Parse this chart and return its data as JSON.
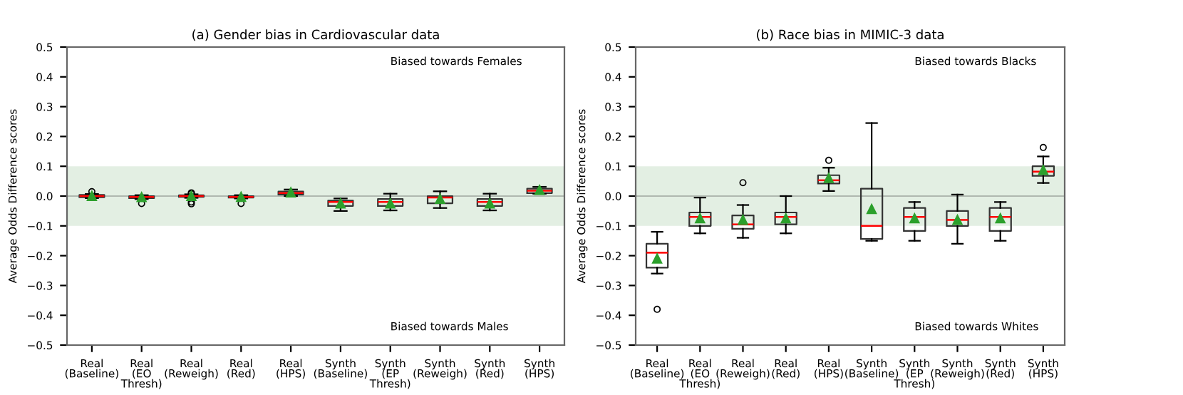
{
  "chart_data": [
    {
      "type": "box",
      "title": "(a) Gender bias in Cardiovascular data",
      "ylabel": "Average Odds Difference scores",
      "categories": [
        "Real\n(Baseline)",
        "Real\n(EO\nThresh)",
        "Real\n(Reweigh)",
        "Real\n(Red)",
        "Real\n(HPS)",
        "Synth\n(Baseline)",
        "Synth\n(EP\nThresh)",
        "Synth\n(Reweigh)",
        "Synth\n(Red)",
        "Synth\n(HPS)"
      ],
      "boxes": [
        {
          "low": -0.007,
          "q1": -0.004,
          "median": 0.0,
          "q3": 0.004,
          "high": 0.007,
          "mean": 0.0,
          "outliers": [
            0.015
          ]
        },
        {
          "low": -0.01,
          "q1": -0.007,
          "median": -0.003,
          "q3": 0.0,
          "high": 0.003,
          "mean": -0.004,
          "outliers": [
            -0.025
          ]
        },
        {
          "low": -0.006,
          "q1": -0.003,
          "median": 0.0,
          "q3": 0.003,
          "high": 0.006,
          "mean": 0.0,
          "outliers": [
            0.011,
            -0.026,
            0.008,
            -0.02
          ]
        },
        {
          "low": -0.008,
          "q1": -0.005,
          "median": -0.003,
          "q3": 0.0,
          "high": 0.003,
          "mean": -0.003,
          "outliers": [
            -0.025
          ]
        },
        {
          "low": 0.0,
          "q1": 0.005,
          "median": 0.01,
          "q3": 0.015,
          "high": 0.022,
          "mean": 0.012
        },
        {
          "low": -0.05,
          "q1": -0.033,
          "median": -0.02,
          "q3": -0.015,
          "high": -0.008,
          "mean": -0.025
        },
        {
          "low": -0.048,
          "q1": -0.033,
          "median": -0.02,
          "q3": -0.01,
          "high": 0.008,
          "mean": -0.025
        },
        {
          "low": -0.04,
          "q1": -0.024,
          "median": -0.005,
          "q3": 0.0,
          "high": 0.016,
          "mean": -0.01
        },
        {
          "low": -0.048,
          "q1": -0.033,
          "median": -0.02,
          "q3": -0.01,
          "high": 0.008,
          "mean": -0.025
        },
        {
          "low": 0.008,
          "q1": 0.01,
          "median": 0.018,
          "q3": 0.025,
          "high": 0.031,
          "mean": 0.02
        }
      ],
      "ylim": [
        -0.5,
        0.5
      ],
      "yticks": [
        {
          "value": -0.5,
          "label": "−0.5"
        },
        {
          "value": -0.4,
          "label": "−0.4"
        },
        {
          "value": -0.3,
          "label": "−0.3"
        },
        {
          "value": -0.2,
          "label": "−0.2"
        },
        {
          "value": -0.1,
          "label": "−0.1"
        },
        {
          "value": 0.0,
          "label": "0.0"
        },
        {
          "value": 0.1,
          "label": "0.1"
        },
        {
          "value": 0.2,
          "label": "0.2"
        },
        {
          "value": 0.3,
          "label": "0.3"
        },
        {
          "value": 0.4,
          "label": "0.4"
        },
        {
          "value": 0.5,
          "label": "0.5"
        }
      ],
      "ref_lines": [
        {
          "axis": "y",
          "value": 0,
          "color": "#b0b8b0"
        }
      ],
      "bands": [
        {
          "axis": "y",
          "from": -0.1,
          "to": 0.1,
          "color": "#e3efe3"
        }
      ],
      "annotations": [
        "Biased towards Females",
        "Biased towards Males"
      ]
    },
    {
      "type": "box",
      "title": "(b) Race bias in MIMIC-3 data",
      "ylabel": "Average Odds Difference scores",
      "categories": [
        "Real\n(Baseline)",
        "Real\n(EO\nThresh)",
        "Real\n(Reweigh)",
        "Real\n(Red)",
        "Real\n(HPS)",
        "Synth\n(Baseline)",
        "Synth\n(EP\nThresh)",
        "Synth\n(Reweigh)",
        "Synth\n(Red)",
        "Synth\n(HPS)"
      ],
      "boxes": [
        {
          "low": -0.26,
          "q1": -0.24,
          "median": -0.19,
          "q3": -0.16,
          "high": -0.12,
          "mean": -0.21,
          "outliers": [
            -0.38
          ]
        },
        {
          "low": -0.125,
          "q1": -0.1,
          "median": -0.07,
          "q3": -0.055,
          "high": -0.005,
          "mean": -0.075
        },
        {
          "low": -0.14,
          "q1": -0.11,
          "median": -0.095,
          "q3": -0.065,
          "high": -0.03,
          "mean": -0.08,
          "outliers": [
            0.045
          ]
        },
        {
          "low": -0.125,
          "q1": -0.095,
          "median": -0.07,
          "q3": -0.055,
          "high": 0.0,
          "mean": -0.075
        },
        {
          "low": 0.017,
          "q1": 0.042,
          "median": 0.053,
          "q3": 0.07,
          "high": 0.095,
          "mean": 0.06,
          "outliers": [
            0.12
          ]
        },
        {
          "low": -0.15,
          "q1": -0.144,
          "median": -0.1,
          "q3": 0.025,
          "high": 0.245,
          "mean": -0.044
        },
        {
          "low": -0.15,
          "q1": -0.117,
          "median": -0.07,
          "q3": -0.04,
          "high": -0.02,
          "mean": -0.075
        },
        {
          "low": -0.16,
          "q1": -0.1,
          "median": -0.08,
          "q3": -0.05,
          "high": 0.005,
          "mean": -0.08
        },
        {
          "low": -0.15,
          "q1": -0.117,
          "median": -0.07,
          "q3": -0.04,
          "high": -0.02,
          "mean": -0.075
        },
        {
          "low": 0.044,
          "q1": 0.068,
          "median": 0.082,
          "q3": 0.1,
          "high": 0.133,
          "mean": 0.087,
          "outliers": [
            0.163
          ]
        }
      ],
      "ylim": [
        -0.5,
        0.5
      ],
      "yticks": [
        {
          "value": -0.5,
          "label": "−0.5"
        },
        {
          "value": -0.4,
          "label": "−0.4"
        },
        {
          "value": -0.3,
          "label": "−0.3"
        },
        {
          "value": -0.2,
          "label": "−0.2"
        },
        {
          "value": -0.1,
          "label": "−0.1"
        },
        {
          "value": 0.0,
          "label": "0.0"
        },
        {
          "value": 0.1,
          "label": "0.1"
        },
        {
          "value": 0.2,
          "label": "0.2"
        },
        {
          "value": 0.3,
          "label": "0.3"
        },
        {
          "value": 0.4,
          "label": "0.4"
        },
        {
          "value": 0.5,
          "label": "0.5"
        }
      ],
      "ref_lines": [
        {
          "axis": "y",
          "value": 0,
          "color": "#b0b8b0"
        }
      ],
      "bands": [
        {
          "axis": "y",
          "from": -0.1,
          "to": 0.1,
          "color": "#e3efe3"
        }
      ],
      "annotations": [
        "Biased towards Blacks",
        "Biased towards Whites"
      ]
    }
  ]
}
